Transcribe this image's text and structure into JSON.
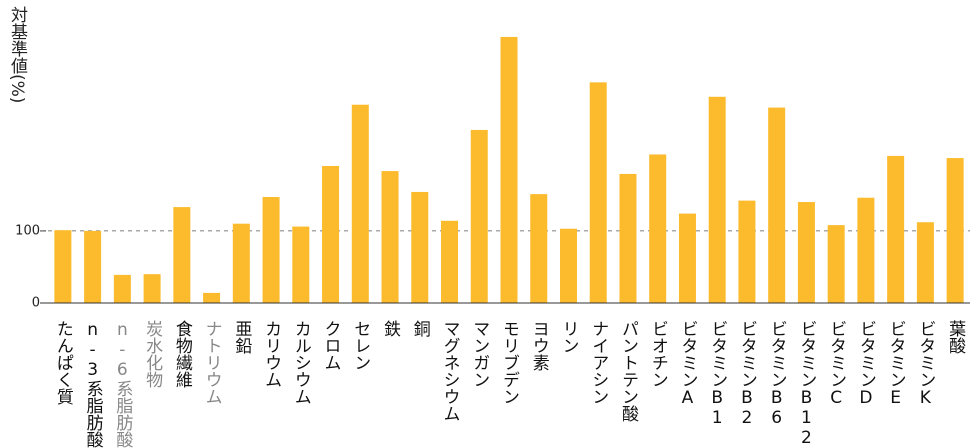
{
  "chart_data": {
    "type": "bar",
    "y_label": "対基準値(%)",
    "categories": [
      "たんぱく質",
      "n-3系脂肪酸",
      "n-6系脂肪酸",
      "炭水化物",
      "食物繊維",
      "ナトリウム",
      "亜鉛",
      "カリウム",
      "カルシウム",
      "クロム",
      "セレン",
      "鉄",
      "銅",
      "マグネシウム",
      "マンガン",
      "モリブデン",
      "ヨウ素",
      "リン",
      "ナイアシン",
      "パントテン酸",
      "ビオチン",
      "ビタミンA",
      "ビタミンB1",
      "ビタミンB2",
      "ビタミンB6",
      "ビタミンB12",
      "ビタミンC",
      "ビタミンD",
      "ビタミンE",
      "ビタミンK",
      "葉酸"
    ],
    "values": [
      101,
      100,
      39,
      40,
      133,
      14,
      110,
      147,
      106,
      190,
      275,
      183,
      154,
      114,
      240,
      369,
      151,
      103,
      306,
      179,
      206,
      124,
      286,
      142,
      271,
      140,
      108,
      146,
      204,
      112,
      201
    ],
    "color": "#fbbb2c",
    "category_label_colors": [
      "#111",
      "#111",
      "#888",
      "#888",
      "#111",
      "#888",
      "#111",
      "#111",
      "#111",
      "#111",
      "#111",
      "#111",
      "#111",
      "#111",
      "#111",
      "#111",
      "#111",
      "#111",
      "#111",
      "#111",
      "#111",
      "#111",
      "#111",
      "#111",
      "#111",
      "#111",
      "#111",
      "#111",
      "#111",
      "#111",
      "#111"
    ],
    "ylim": [
      0,
      380
    ],
    "yticks": [
      0,
      100
    ],
    "reference_line": 100
  }
}
